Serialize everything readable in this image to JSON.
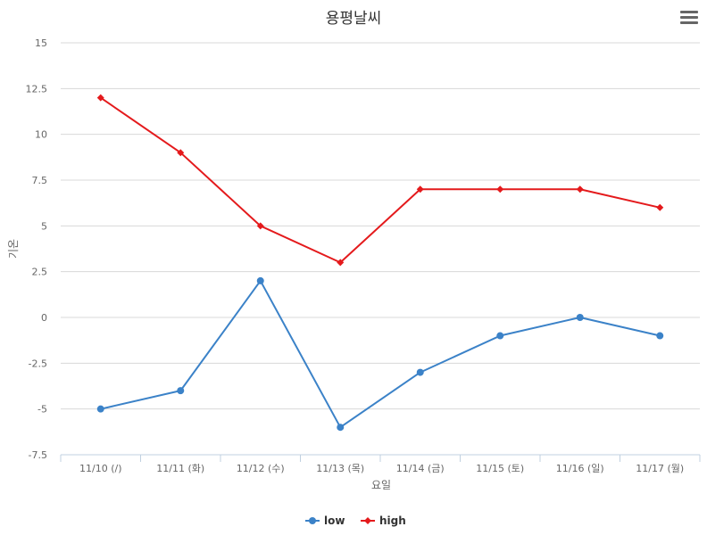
{
  "chart_data": {
    "type": "line",
    "title": "용평날씨",
    "xlabel": "요일",
    "ylabel": "기온",
    "categories": [
      "11/10 (/)",
      "11/11 (화)",
      "11/12 (수)",
      "11/13 (목)",
      "11/14 (금)",
      "11/15 (토)",
      "11/16 (일)",
      "11/17 (월)"
    ],
    "ylim": [
      -7.5,
      15
    ],
    "yticks": [
      "15",
      "12.5",
      "10",
      "7.5",
      "5",
      "2.5",
      "0",
      "-2.5",
      "-5",
      "-7.5"
    ],
    "ytick_values": [
      15,
      12.5,
      10,
      7.5,
      5,
      2.5,
      0,
      -2.5,
      -5,
      -7.5
    ],
    "grid": true,
    "legend": "bottom-center",
    "series": [
      {
        "name": "low",
        "color": "#3b82c8",
        "marker": "circle",
        "values": [
          -5,
          -4,
          2,
          -6,
          -3,
          -1,
          0,
          -1
        ]
      },
      {
        "name": "high",
        "color": "#e41a1c",
        "marker": "diamond",
        "values": [
          12,
          9,
          5,
          3,
          7,
          7,
          7,
          6
        ]
      }
    ]
  }
}
